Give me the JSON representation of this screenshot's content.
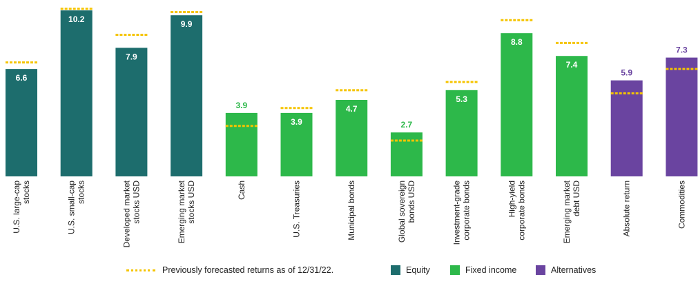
{
  "chart_data": {
    "type": "bar",
    "categories": [
      [
        "U.S. large-cap",
        "stocks"
      ],
      [
        "U.S. small-cap",
        "stocks"
      ],
      [
        "Developed market",
        "stocks USD"
      ],
      [
        "Emerging market",
        "stocks USD"
      ],
      [
        "Cash"
      ],
      [
        "U.S. Treasuries"
      ],
      [
        "Municipal bonds"
      ],
      [
        "Global sovereign",
        "bonds USD"
      ],
      [
        "Investment-grade",
        "corporate bonds"
      ],
      [
        "High-yield",
        "corporate bonds"
      ],
      [
        "Emerging market",
        "debt USD"
      ],
      [
        "Absolute return"
      ],
      [
        "Commodities"
      ]
    ],
    "values": [
      6.6,
      10.2,
      7.9,
      9.9,
      3.9,
      3.9,
      4.7,
      2.7,
      5.3,
      8.8,
      7.4,
      5.9,
      7.3
    ],
    "value_labels": [
      "6.6",
      "10.2",
      "7.9",
      "9.9",
      "3.9",
      "3.9",
      "4.7",
      "2.7",
      "5.3",
      "8.8",
      "7.4",
      "5.9",
      "7.3"
    ],
    "previous_forecast": [
      7.0,
      10.3,
      8.7,
      10.1,
      3.1,
      4.2,
      5.3,
      2.2,
      5.8,
      9.6,
      8.2,
      5.1,
      6.6
    ],
    "groups": [
      "Equity",
      "Equity",
      "Equity",
      "Equity",
      "Fixed income",
      "Fixed income",
      "Fixed income",
      "Fixed income",
      "Fixed income",
      "Fixed income",
      "Fixed income",
      "Alternatives",
      "Alternatives"
    ],
    "ylim": [
      0,
      10.5
    ],
    "grid": false,
    "legend_position": "bottom",
    "colors": {
      "Equity": "#1d6d6d",
      "Fixed income": "#2db84a",
      "Alternatives": "#6a44a0",
      "previous": "#f5c400",
      "label_inside": "#ffffff"
    }
  },
  "legend": {
    "previous_label": "Previously forecasted returns as of 12/31/22.",
    "equity_label": "Equity",
    "fixed_income_label": "Fixed income",
    "alternatives_label": "Alternatives"
  }
}
